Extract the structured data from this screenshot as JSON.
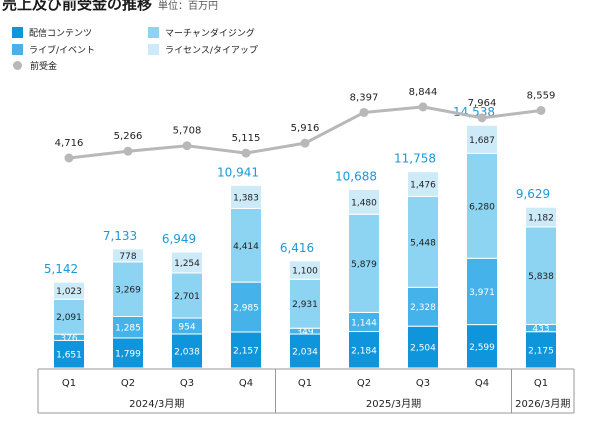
{
  "header": {
    "title": "売上及び前受金の推移",
    "unit": "単位：百万円"
  },
  "legend": {
    "items": [
      {
        "label": "配信コンテンツ",
        "color": "#0f95dc",
        "kind": "box"
      },
      {
        "label": "マーチャンダイジング",
        "color": "#8dd3f2",
        "kind": "box"
      },
      {
        "label": "ライブ/イベント",
        "color": "#45b3ea",
        "kind": "box"
      },
      {
        "label": "ライセンス/タイアップ",
        "color": "#cdeaf8",
        "kind": "box"
      },
      {
        "label": "前受金",
        "color": "#b8b8b8",
        "kind": "dot"
      }
    ]
  },
  "chart_data": {
    "type": "bar",
    "stacked": true,
    "categories": [
      "Q1",
      "Q2",
      "Q3",
      "Q4",
      "Q1",
      "Q2",
      "Q3",
      "Q4",
      "Q1"
    ],
    "groups": [
      {
        "label": "2024/3月期",
        "count": 4
      },
      {
        "label": "2025/3月期",
        "count": 4
      },
      {
        "label": "2026/3月期",
        "count": 1
      }
    ],
    "series": [
      {
        "name": "配信コンテンツ",
        "color": "#0f95dc",
        "values": [
          1651,
          1799,
          2038,
          2157,
          2034,
          2184,
          2504,
          2599,
          2175
        ]
      },
      {
        "name": "ライブ/イベント",
        "color": "#45b3ea",
        "values": [
          376,
          1285,
          954,
          2985,
          349,
          1144,
          2328,
          3971,
          433
        ]
      },
      {
        "name": "マーチャンダイジング",
        "color": "#8dd3f2",
        "values": [
          2091,
          3269,
          2701,
          4414,
          2931,
          5879,
          5448,
          6280,
          5838
        ]
      },
      {
        "name": "ライセンス/タイアップ",
        "color": "#cdeaf8",
        "values": [
          1023,
          778,
          1254,
          1383,
          1100,
          1480,
          1476,
          1687,
          1182
        ]
      }
    ],
    "totals": [
      5142,
      7133,
      6949,
      10941,
      6416,
      10688,
      11758,
      14538,
      9629
    ],
    "line": {
      "name": "前受金",
      "color": "#b8b8b8",
      "values": [
        4716,
        5266,
        5708,
        5115,
        5916,
        8397,
        8844,
        7964,
        8559
      ]
    },
    "total_label_color": "#1a9ad6",
    "grid": false
  }
}
